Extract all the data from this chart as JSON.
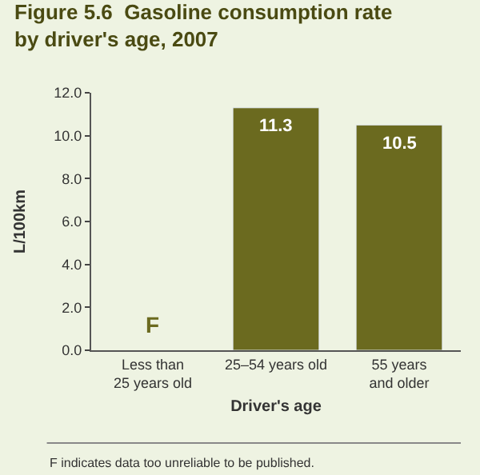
{
  "chart_data": {
    "type": "bar",
    "title": "Figure 5.6  Gasoline consumption rate\nby driver's age, 2007",
    "xlabel": "Driver's age",
    "ylabel": "L/100km",
    "categories": [
      "Less than\n25 years old",
      "25–54 years old",
      "55 years\nand older"
    ],
    "values": [
      null,
      11.3,
      10.5
    ],
    "value_labels": [
      "F",
      "11.3",
      "10.5"
    ],
    "color": "#6b6a1f",
    "ylim": [
      0,
      12
    ],
    "yticks": [
      {
        "value": 0,
        "label": "0.0"
      },
      {
        "value": 2,
        "label": "2.0"
      },
      {
        "value": 4,
        "label": "4.0"
      },
      {
        "value": 6,
        "label": "6.0"
      },
      {
        "value": 8,
        "label": "8.0"
      },
      {
        "value": 10,
        "label": "10.0"
      },
      {
        "value": 12,
        "label": "12.0"
      }
    ],
    "grid": false,
    "annotations": [
      "F indicates data too unreliable to be published."
    ]
  }
}
